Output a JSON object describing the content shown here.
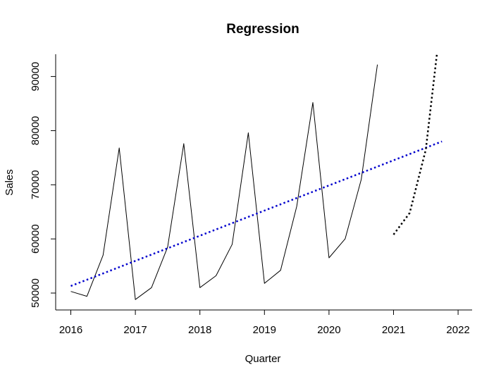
{
  "chart_data": {
    "type": "line",
    "title": "Regression",
    "xlabel": "Quarter",
    "ylabel": "Sales",
    "xlim": [
      2016,
      2022.2
    ],
    "ylim": [
      47000,
      94000
    ],
    "x_ticks": [
      "2016",
      "2017",
      "2018",
      "2019",
      "2020",
      "2021",
      "2022"
    ],
    "y_ticks": [
      "50000",
      "60000",
      "70000",
      "80000",
      "90000"
    ],
    "grid": false,
    "legend": "none",
    "series": [
      {
        "style": "solid",
        "color": "#000000",
        "x": [
          2016.0,
          2016.25,
          2016.5,
          2016.75,
          2017.0,
          2017.25,
          2017.5,
          2017.75,
          2018.0,
          2018.25,
          2018.5,
          2018.75,
          2019.0,
          2019.25,
          2019.5,
          2019.75,
          2020.0,
          2020.25,
          2020.5,
          2020.75
        ],
        "values": [
          50300,
          49400,
          57000,
          76800,
          48800,
          51000,
          58500,
          77600,
          51000,
          53200,
          59000,
          79600,
          51800,
          54200,
          66000,
          85200,
          56500,
          60000,
          71000,
          92200
        ]
      },
      {
        "style": "dotted",
        "color": "#0000cd",
        "x": [
          2016.0,
          2021.75
        ],
        "values": [
          51300,
          78000
        ]
      },
      {
        "style": "dotted",
        "color": "#000000",
        "x": [
          2021.0,
          2021.25,
          2021.5,
          2021.67
        ],
        "values": [
          60800,
          64800,
          76500,
          94000
        ]
      }
    ]
  }
}
